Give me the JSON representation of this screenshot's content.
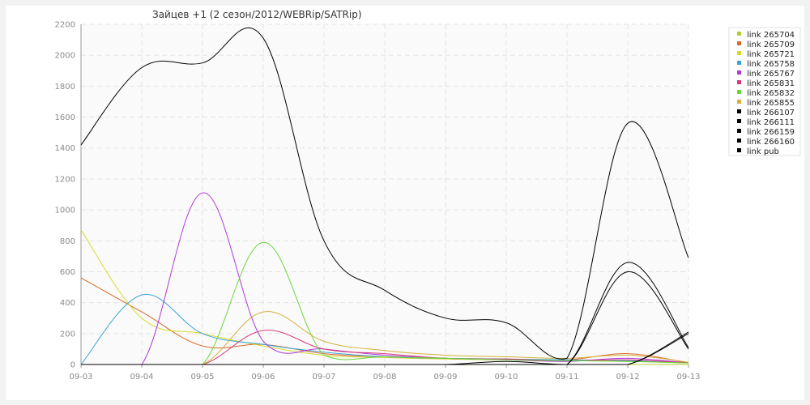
{
  "chart_data": {
    "type": "line",
    "title": "Зайцев +1 (2 сезон/2012/WEBRip/SATRip)",
    "xlabel": "",
    "ylabel": "",
    "categories": [
      "09-03",
      "09-04",
      "09-05",
      "09-06",
      "09-07",
      "09-08",
      "09-09",
      "09-10",
      "09-11",
      "09-12",
      "09-13"
    ],
    "ylim": [
      0,
      2200
    ],
    "yticks": [
      0,
      200,
      400,
      600,
      800,
      1000,
      1200,
      1400,
      1600,
      1800,
      2000,
      2200
    ],
    "grid": true,
    "legend_position": "top-right",
    "series": [
      {
        "name": "link 265704",
        "color": "#b5cc2e",
        "values": [
          0,
          0,
          0,
          0,
          0,
          0,
          0,
          0,
          0,
          0,
          0
        ]
      },
      {
        "name": "link 265709",
        "color": "#d9692b",
        "values": [
          560,
          340,
          120,
          130,
          70,
          50,
          40,
          35,
          30,
          70,
          10
        ]
      },
      {
        "name": "link 265721",
        "color": "#d6d92b",
        "values": [
          870,
          300,
          200,
          120,
          60,
          45,
          35,
          30,
          25,
          20,
          10
        ]
      },
      {
        "name": "link 265758",
        "color": "#3aa5d6",
        "values": [
          0,
          450,
          200,
          130,
          80,
          50,
          40,
          35,
          30,
          25,
          10
        ]
      },
      {
        "name": "link 265767",
        "color": "#b03ad6",
        "values": [
          0,
          0,
          1110,
          150,
          100,
          60,
          40,
          30,
          20,
          40,
          10
        ]
      },
      {
        "name": "link 265831",
        "color": "#d63a7a",
        "values": [
          0,
          0,
          0,
          220,
          100,
          70,
          40,
          35,
          25,
          30,
          10
        ]
      },
      {
        "name": "link 265832",
        "color": "#6ad63a",
        "values": [
          0,
          0,
          0,
          790,
          60,
          50,
          40,
          30,
          25,
          20,
          10
        ]
      },
      {
        "name": "link 265855",
        "color": "#d6b03a",
        "values": [
          0,
          0,
          0,
          340,
          150,
          90,
          60,
          50,
          40,
          60,
          15
        ]
      },
      {
        "name": "link 266107",
        "color": "#000000",
        "values": [
          1420,
          1920,
          1950,
          2110,
          800,
          480,
          300,
          270,
          40,
          1560,
          690
        ]
      },
      {
        "name": "link 266111",
        "color": "#000000",
        "values": [
          0,
          0,
          0,
          0,
          0,
          0,
          0,
          20,
          0,
          660,
          110
        ]
      },
      {
        "name": "link 266159",
        "color": "#000000",
        "values": [
          0,
          0,
          0,
          0,
          0,
          0,
          0,
          0,
          0,
          600,
          100
        ]
      },
      {
        "name": "link 266160",
        "color": "#000000",
        "values": [
          0,
          0,
          0,
          0,
          0,
          0,
          0,
          0,
          0,
          0,
          210
        ]
      },
      {
        "name": "link pub",
        "color": "#000000",
        "values": [
          0,
          0,
          0,
          0,
          0,
          0,
          0,
          0,
          0,
          0,
          200
        ]
      }
    ]
  }
}
